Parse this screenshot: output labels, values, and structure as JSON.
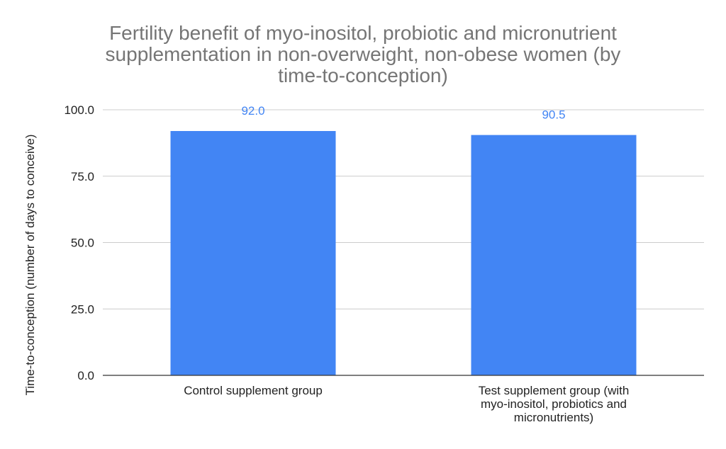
{
  "chart_data": {
    "type": "bar",
    "title_lines": [
      "Fertility benefit of myo-inositol, probiotic and micronutrient",
      "supplementation in non-overweight, non-obese women (by",
      "time-to-conception)"
    ],
    "xlabel": "",
    "ylabel": "Time-to-conception (number of days to conceive)",
    "categories": [
      [
        "Control supplement group"
      ],
      [
        "Test supplement group (with",
        "myo-inositol, probiotics and",
        "micronutrients)"
      ]
    ],
    "values": [
      92.0,
      90.5
    ],
    "value_labels": [
      "92.0",
      "90.5"
    ],
    "ylim": [
      0,
      100
    ],
    "yticks": [
      0,
      25,
      50,
      75,
      100
    ],
    "ytick_labels": [
      "0.0",
      "25.0",
      "50.0",
      "75.0",
      "100.0"
    ],
    "grid": true,
    "legend": "none",
    "colors": {
      "bar": "#4285f4",
      "data_label": "#4285f4",
      "title": "#757575",
      "grid": "#cccccc",
      "axis": "#333333"
    }
  }
}
